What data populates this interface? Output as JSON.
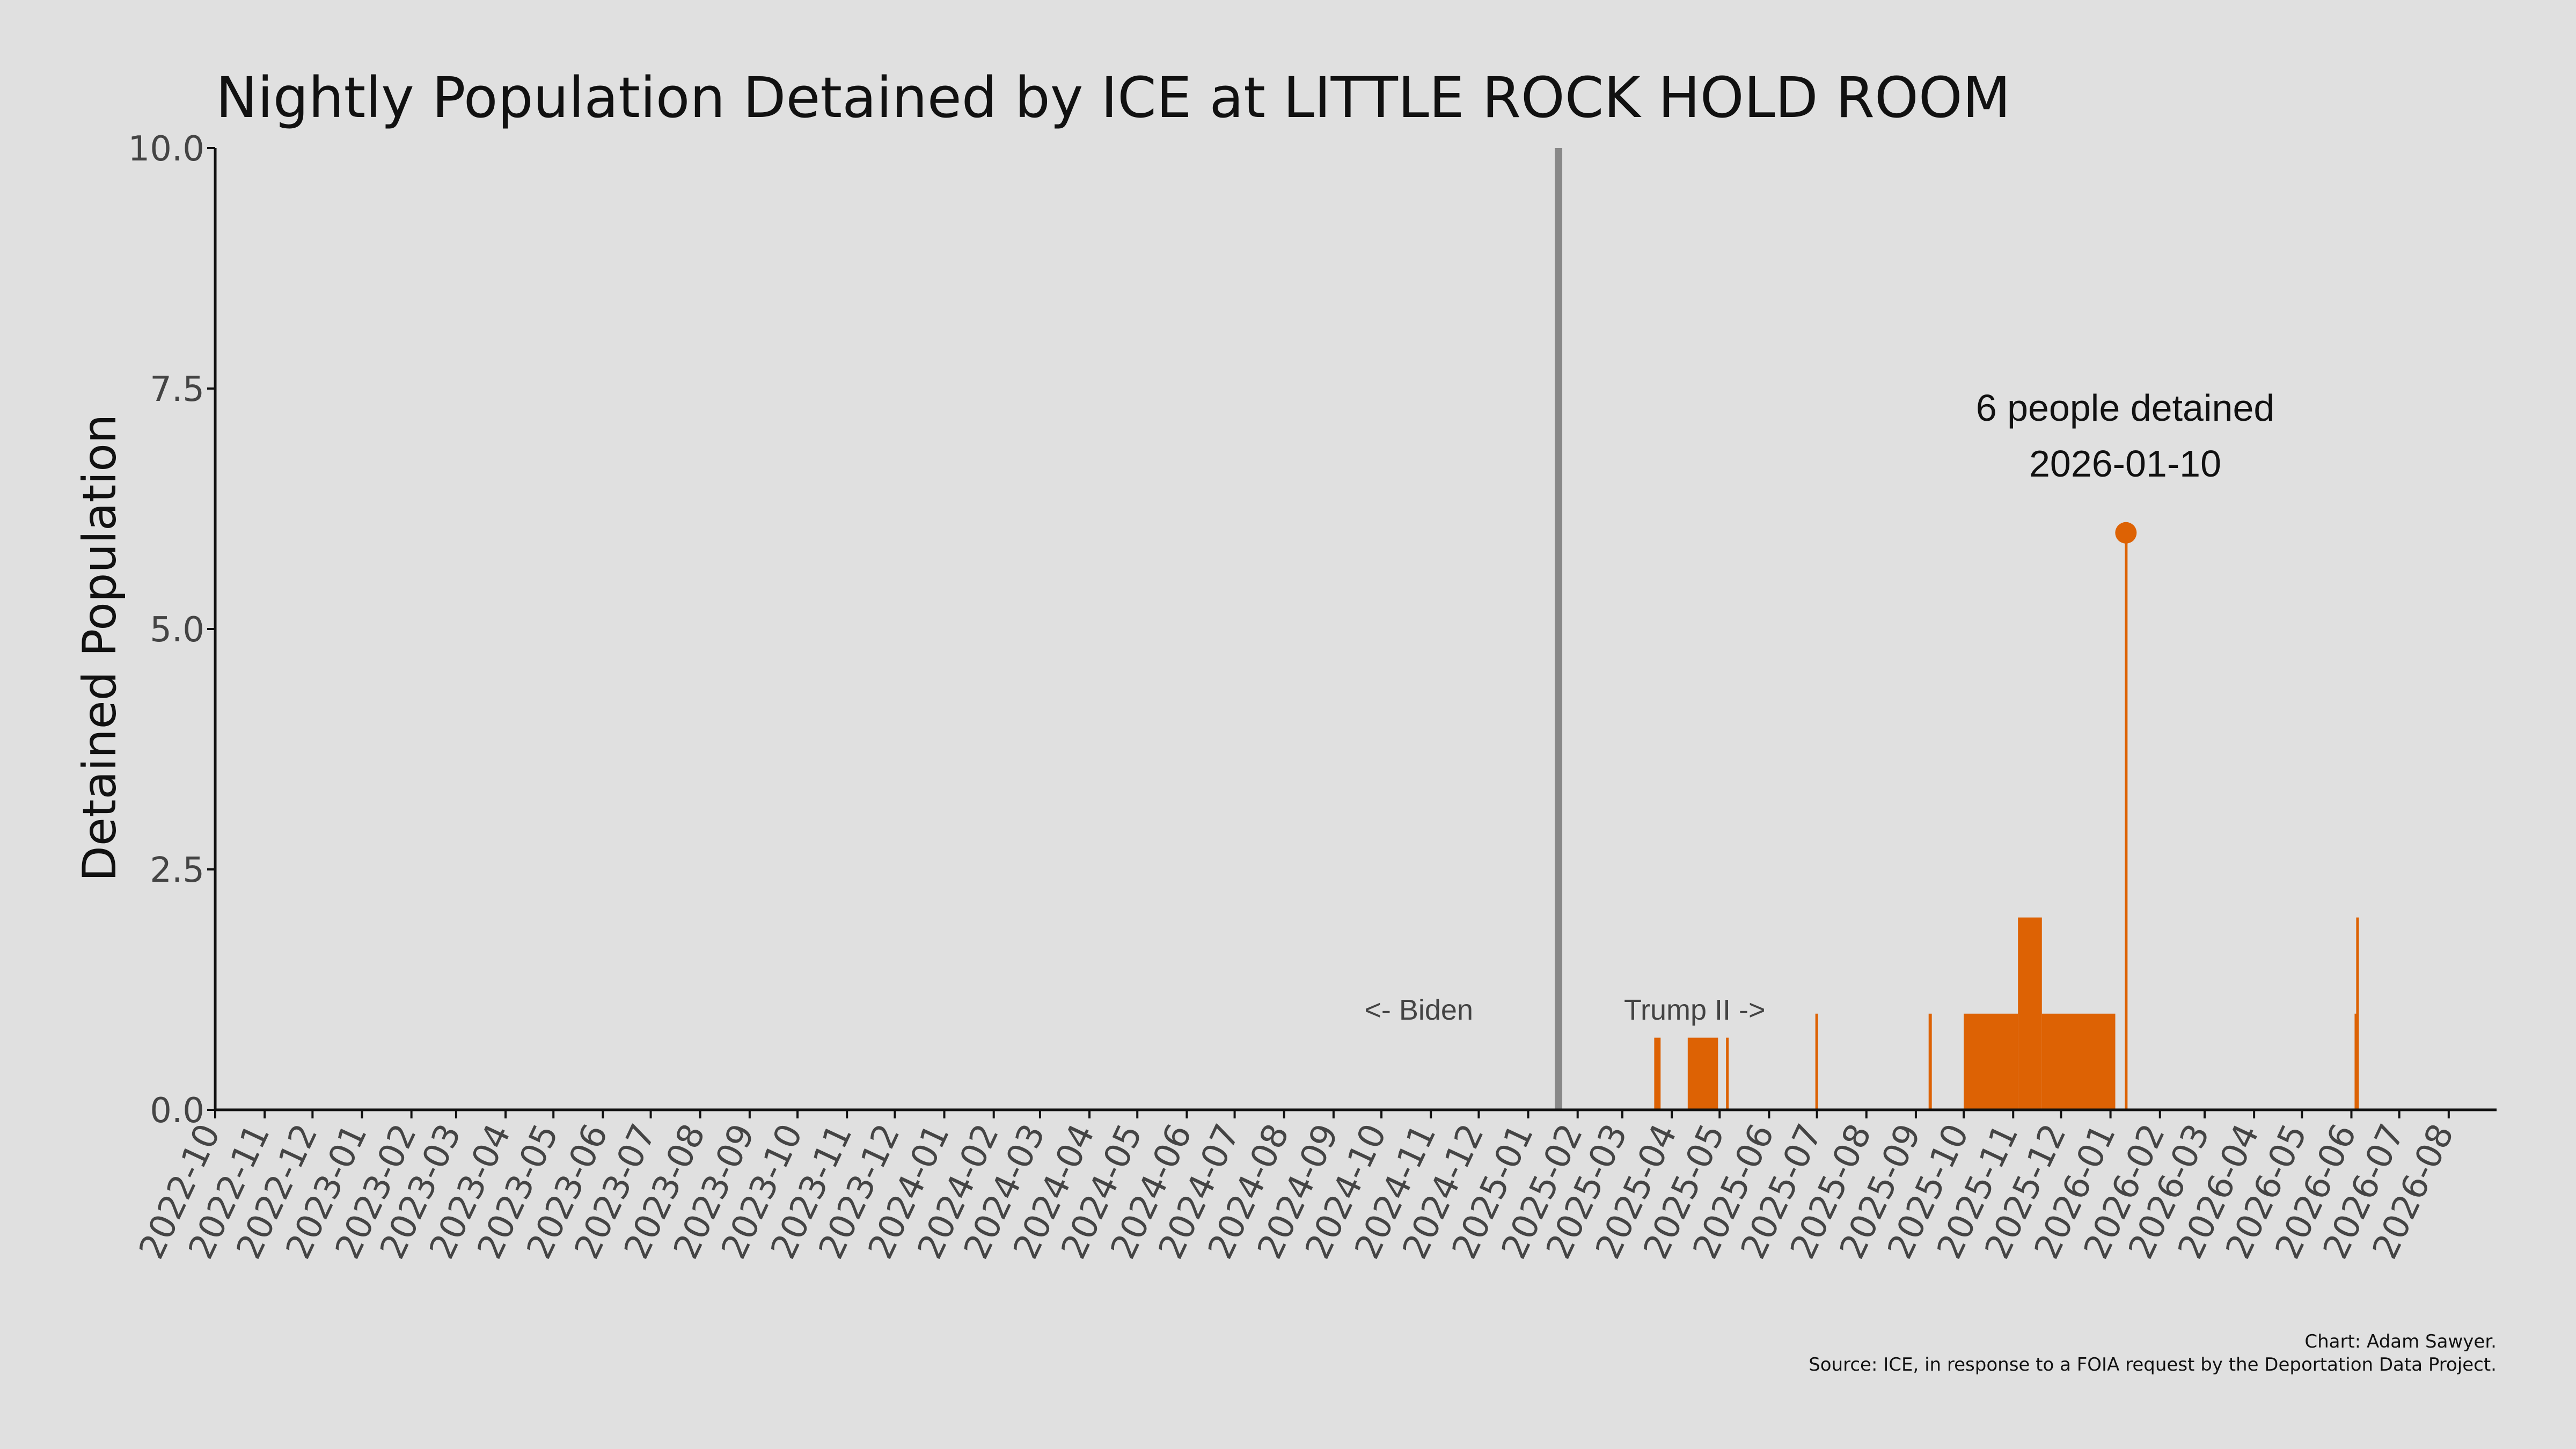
{
  "chart_data": {
    "type": "bar",
    "title": "Nightly Population Detained by ICE at LITTLE ROCK HOLD ROOM",
    "ylabel": "Detained Population",
    "xlabel": "",
    "ylim": [
      0,
      10
    ],
    "xlim": [
      "2022-10-01",
      "2026-08-31"
    ],
    "y_ticks": [
      "0.0",
      "2.5",
      "5.0",
      "7.5",
      "10.0"
    ],
    "x_ticks": [
      "2022-10",
      "2022-11",
      "2022-12",
      "2023-01",
      "2023-02",
      "2023-03",
      "2023-04",
      "2023-05",
      "2023-06",
      "2023-07",
      "2023-08",
      "2023-09",
      "2023-10",
      "2023-11",
      "2023-12",
      "2024-01",
      "2024-02",
      "2024-03",
      "2024-04",
      "2024-05",
      "2024-06",
      "2024-07",
      "2024-08",
      "2024-09",
      "2024-10",
      "2024-11",
      "2024-12",
      "2025-01",
      "2025-02",
      "2025-03",
      "2025-04",
      "2025-05",
      "2025-06",
      "2025-07",
      "2025-08",
      "2025-09",
      "2025-10",
      "2025-11",
      "2025-12",
      "2026-01",
      "2026-02",
      "2026-03",
      "2026-04",
      "2026-05",
      "2026-06",
      "2026-07",
      "2026-08"
    ],
    "grid": false,
    "legend": "none",
    "bar_color": "#dd6204",
    "series": [
      {
        "points": [
          {
            "start": "2025-03-21",
            "end": "2025-03-25",
            "value": 0.75
          },
          {
            "start": "2025-04-11",
            "end": "2025-04-30",
            "value": 0.75
          },
          {
            "start": "2025-05-05",
            "end": "2025-05-06",
            "value": 0.75
          },
          {
            "start": "2025-06-30",
            "end": "2025-07-01",
            "value": 1
          },
          {
            "start": "2025-09-09",
            "end": "2025-09-11",
            "value": 1
          },
          {
            "start": "2025-10-01",
            "end": "2025-11-04",
            "value": 1
          },
          {
            "start": "2025-11-04",
            "end": "2025-11-19",
            "value": 2
          },
          {
            "start": "2025-11-19",
            "end": "2026-01-04",
            "value": 1
          },
          {
            "start": "2026-01-10",
            "end": "2026-01-11",
            "value": 6
          },
          {
            "start": "2026-06-03",
            "end": "2026-06-04",
            "value": 1
          },
          {
            "start": "2026-06-04",
            "end": "2026-06-05",
            "value": 2
          }
        ]
      }
    ],
    "reference_line": {
      "date": "2025-01-20",
      "color": "#888888"
    },
    "annotations": {
      "left_label": "<- Biden",
      "right_label": "Trump II ->",
      "peak_label_line1": "6 people detained",
      "peak_label_line2": "2026-01-10",
      "peak_date": "2026-01-10",
      "peak_value": 6
    },
    "credits": {
      "line1": "Chart: Adam Sawyer.",
      "line2": "Source: ICE, in response to a FOIA request by the Deportation Data Project."
    }
  }
}
